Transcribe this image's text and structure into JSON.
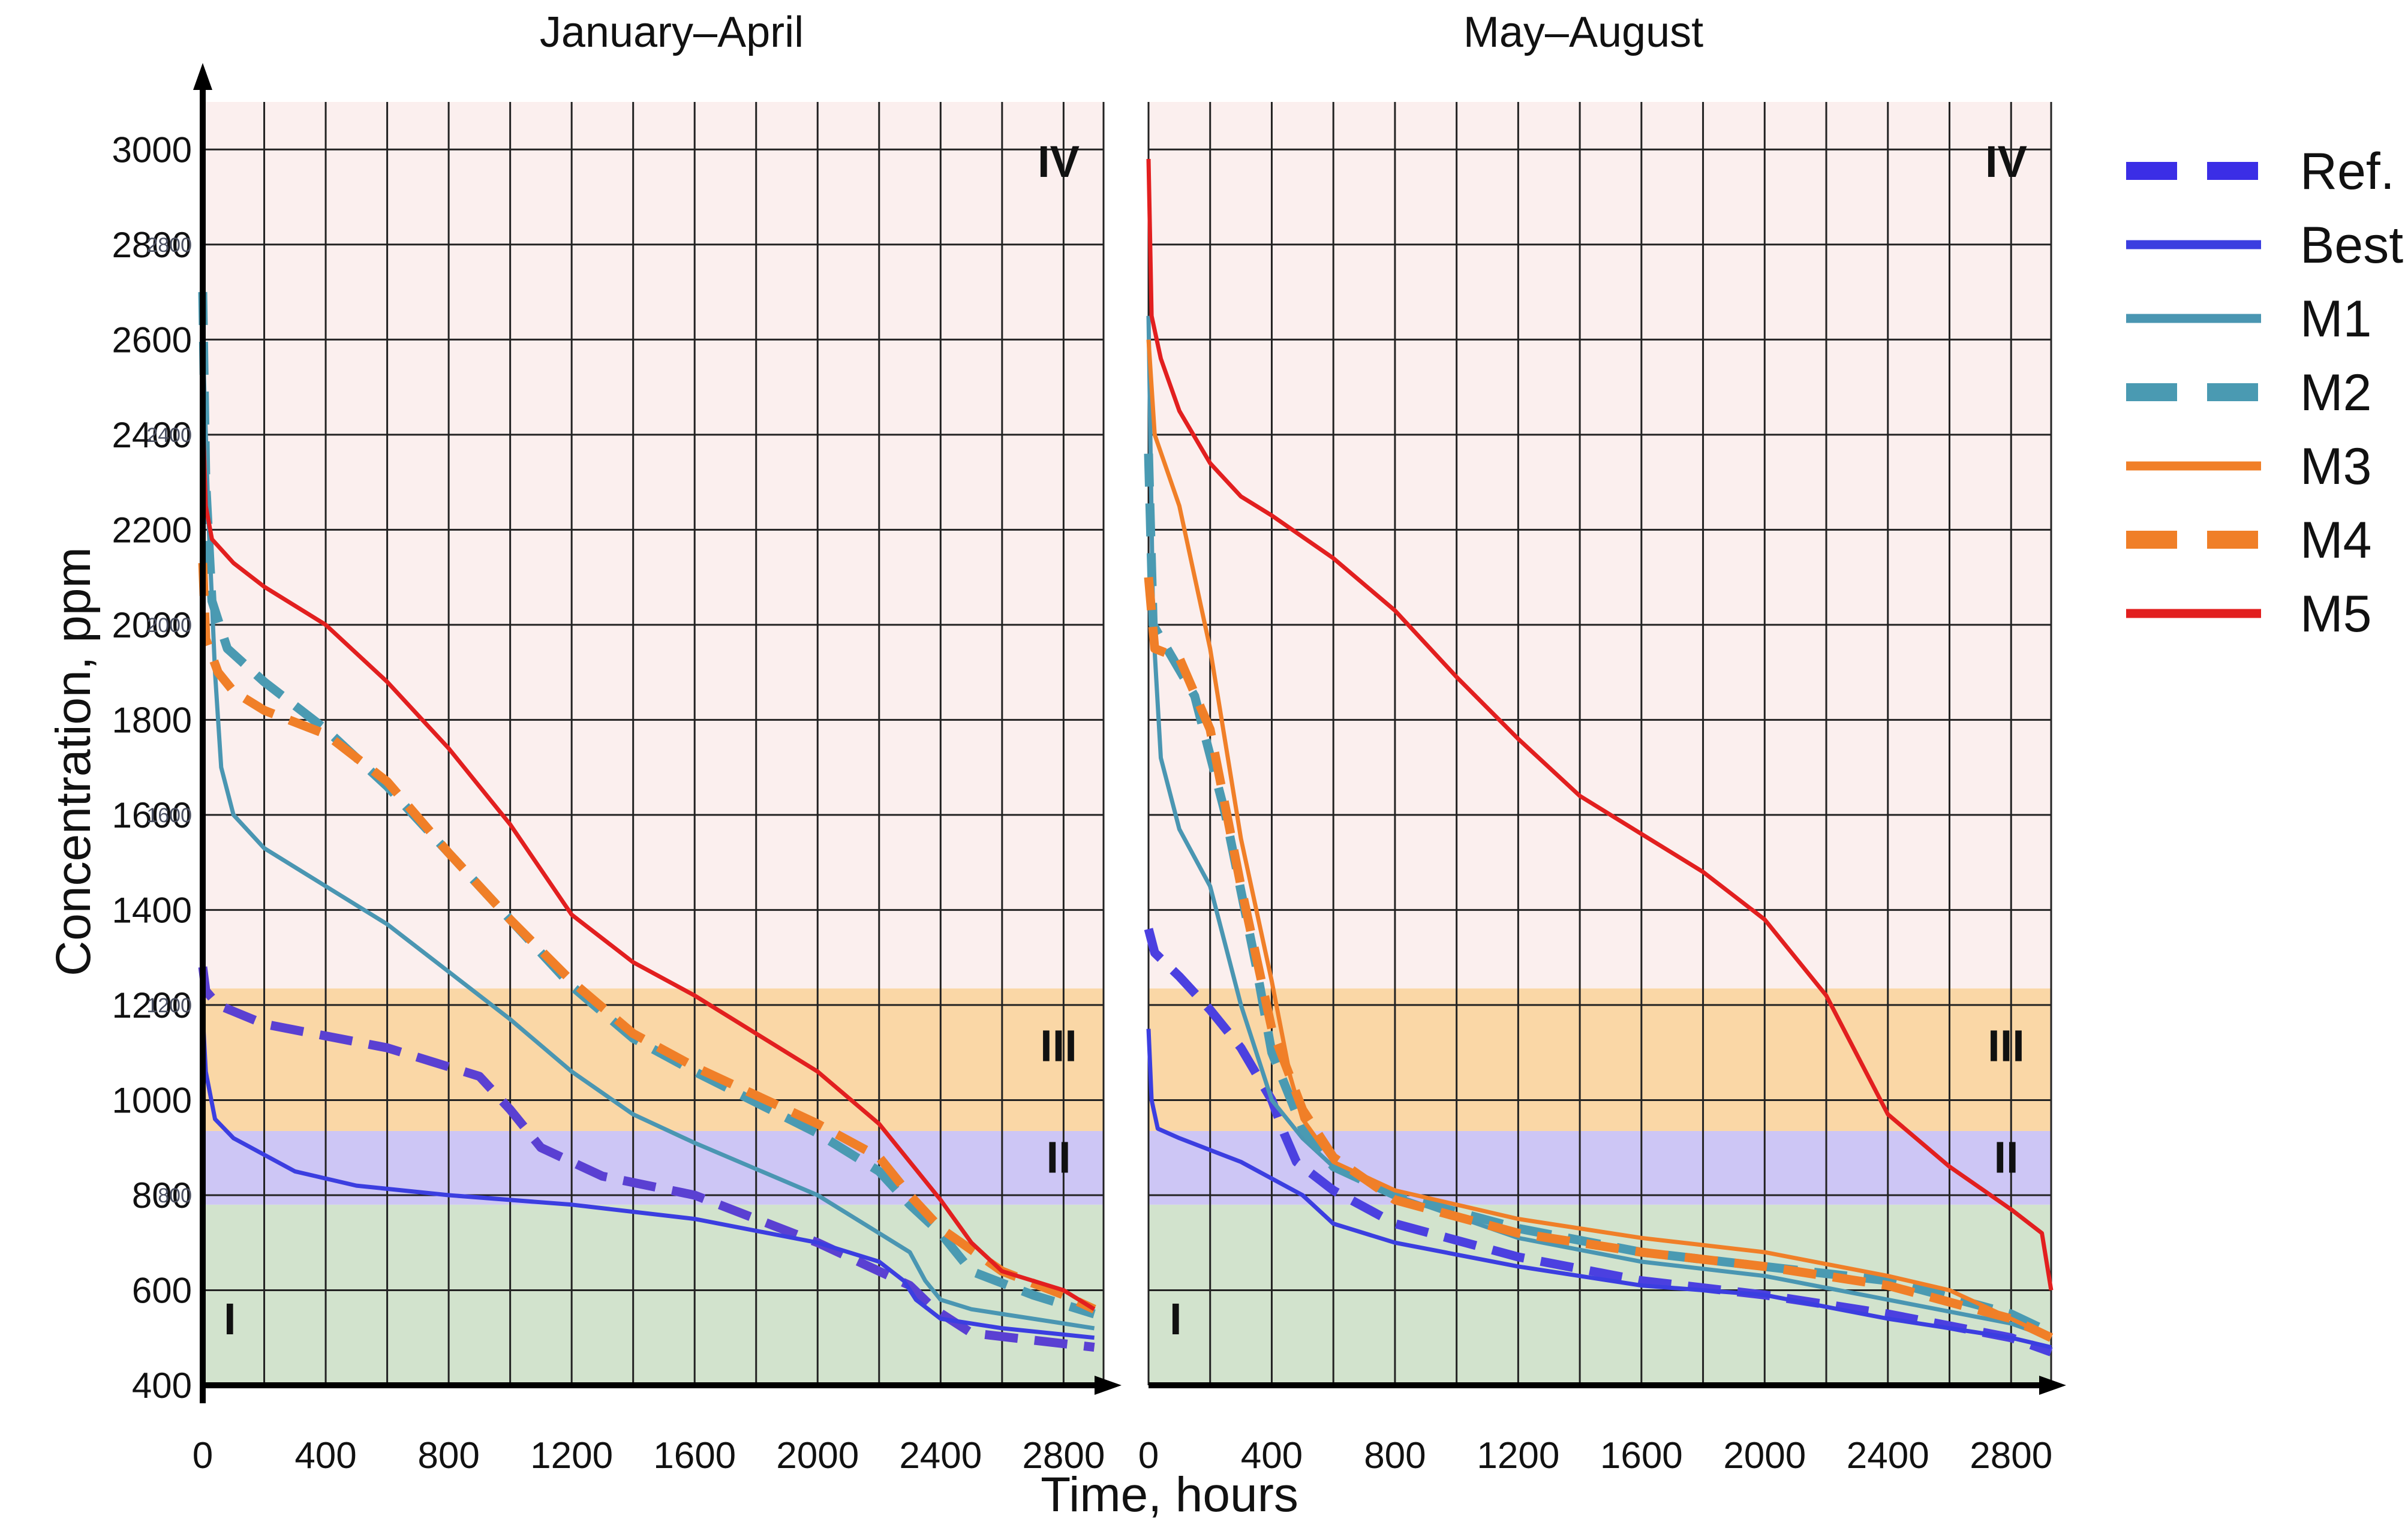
{
  "chart_data": {
    "type": "line",
    "xlabel": "Time, hours",
    "ylabel": "Concentration, ppm",
    "xlim": [
      0,
      2930
    ],
    "ylim": [
      400,
      3100
    ],
    "x_ticks": [
      0,
      400,
      800,
      1200,
      1600,
      2000,
      2400,
      2800
    ],
    "y_ticks": [
      400,
      600,
      800,
      1000,
      1200,
      1400,
      1600,
      1800,
      2000,
      2200,
      2400,
      2600,
      2800,
      3000
    ],
    "y_ticks_small": [
      800,
      1200,
      1600,
      2000,
      2400,
      2800
    ],
    "zones": [
      {
        "label": "I",
        "ymin": 400,
        "ymax": 780,
        "color": "#d2e3cd"
      },
      {
        "label": "II",
        "ymin": 780,
        "ymax": 935,
        "color": "#cdc6f5"
      },
      {
        "label": "III",
        "ymin": 935,
        "ymax": 1235,
        "color": "#fad7a6"
      },
      {
        "label": "IV",
        "ymin": 1235,
        "ymax": 3100,
        "color": "#fbefee"
      }
    ],
    "legend": [
      {
        "name": "Ref.",
        "color": "#3b2ee6",
        "dashed": true
      },
      {
        "name": "Best",
        "color": "#3b3ee0",
        "dashed": false
      },
      {
        "name": "M1",
        "color": "#4a96b2",
        "dashed": false
      },
      {
        "name": "M2",
        "color": "#4a9ab2",
        "dashed": true
      },
      {
        "name": "M3",
        "color": "#f07f28",
        "dashed": false
      },
      {
        "name": "M4",
        "color": "#f07f28",
        "dashed": true
      },
      {
        "name": "M5",
        "color": "#e21f1f",
        "dashed": false
      }
    ],
    "panels": [
      {
        "title": "January–April",
        "series": [
          {
            "name": "Ref.",
            "color": "#5a40d2",
            "dashed": true,
            "x": [
              0,
              10,
              50,
              200,
              600,
              900,
              1000,
              1050,
              1100,
              1300,
              1600,
              2000,
              2300,
              2380,
              2500,
              2700,
              2900
            ],
            "y": [
              1280,
              1230,
              1200,
              1160,
              1110,
              1050,
              980,
              940,
              900,
              840,
              800,
              700,
              610,
              560,
              510,
              495,
              480
            ]
          },
          {
            "name": "Best",
            "color": "#3b3ee0",
            "dashed": false,
            "x": [
              0,
              10,
              40,
              100,
              300,
              500,
              800,
              1200,
              1600,
              2000,
              2200,
              2280,
              2320,
              2400,
              2600,
              2900
            ],
            "y": [
              1180,
              1060,
              960,
              920,
              850,
              820,
              800,
              780,
              750,
              700,
              660,
              620,
              580,
              540,
              520,
              500
            ]
          },
          {
            "name": "M1",
            "color": "#4a96b2",
            "dashed": false,
            "x": [
              0,
              20,
              40,
              60,
              100,
              200,
              400,
              600,
              800,
              1000,
              1200,
              1400,
              1600,
              2000,
              2200,
              2300,
              2350,
              2400,
              2500,
              2700,
              2900
            ],
            "y": [
              2600,
              2200,
              1900,
              1700,
              1600,
              1530,
              1450,
              1370,
              1270,
              1170,
              1060,
              970,
              910,
              800,
              720,
              680,
              620,
              580,
              560,
              540,
              520
            ]
          },
          {
            "name": "M2",
            "color": "#4a9ab2",
            "dashed": true,
            "x": [
              0,
              10,
              30,
              80,
              200,
              400,
              600,
              800,
              1000,
              1200,
              1400,
              1600,
              2000,
              2200,
              2300,
              2400,
              2500,
              2700,
              2900
            ],
            "y": [
              2700,
              2300,
              2050,
              1950,
              1880,
              1780,
              1660,
              1520,
              1380,
              1240,
              1130,
              1060,
              930,
              850,
              780,
              720,
              640,
              590,
              550
            ]
          },
          {
            "name": "M4",
            "color": "#f07f28",
            "dashed": true,
            "x": [
              0,
              10,
              50,
              100,
              200,
              400,
              600,
              800,
              1000,
              1200,
              1400,
              1600,
              2000,
              2200,
              2300,
              2400,
              2600,
              2800,
              2900
            ],
            "y": [
              2130,
              1970,
              1900,
              1860,
              1820,
              1770,
              1670,
              1520,
              1380,
              1250,
              1140,
              1070,
              950,
              880,
              800,
              730,
              640,
              590,
              560
            ]
          },
          {
            "name": "M5",
            "color": "#e21f1f",
            "dashed": false,
            "x": [
              0,
              10,
              30,
              100,
              200,
              400,
              600,
              800,
              1000,
              1200,
              1400,
              1600,
              1800,
              2000,
              2200,
              2400,
              2500,
              2600,
              2800,
              2900
            ],
            "y": [
              2450,
              2250,
              2180,
              2130,
              2080,
              2000,
              1880,
              1740,
              1580,
              1390,
              1290,
              1220,
              1140,
              1060,
              950,
              790,
              700,
              640,
              600,
              560
            ]
          }
        ],
        "zone_label_positions": {
          "IV": "top-right",
          "III": "right",
          "II": "right",
          "I": "bottom-left"
        }
      },
      {
        "title": "May–August",
        "series": [
          {
            "name": "Ref.",
            "color": "#4b40e0",
            "dashed": true,
            "x": [
              0,
              20,
              100,
              200,
              300,
              400,
              440,
              480,
              600,
              800,
              1200,
              1600,
              2000,
              2400,
              2800,
              2930
            ],
            "y": [
              1360,
              1310,
              1260,
              1190,
              1110,
              1000,
              930,
              870,
              810,
              740,
              670,
              620,
              590,
              550,
              500,
              470
            ]
          },
          {
            "name": "Best",
            "color": "#3b3ee0",
            "dashed": false,
            "x": [
              0,
              10,
              30,
              100,
              300,
              500,
              600,
              800,
              1200,
              1600,
              2000,
              2400,
              2800,
              2930
            ],
            "y": [
              1150,
              1000,
              940,
              920,
              870,
              800,
              740,
              700,
              650,
              610,
              590,
              540,
              500,
              480
            ]
          },
          {
            "name": "M1",
            "color": "#4a96b2",
            "dashed": false,
            "x": [
              0,
              15,
              40,
              100,
              200,
              300,
              400,
              500,
              600,
              800,
              1200,
              1600,
              2000,
              2400,
              2800,
              2930
            ],
            "y": [
              2650,
              2000,
              1720,
              1570,
              1450,
              1200,
              1000,
              920,
              860,
              800,
              710,
              660,
              630,
              580,
              530,
              500
            ]
          },
          {
            "name": "M2",
            "color": "#4a9ab2",
            "dashed": true,
            "x": [
              0,
              15,
              60,
              150,
              250,
              350,
              400,
              500,
              600,
              800,
              1200,
              1600,
              2000,
              2400,
              2800,
              2930
            ],
            "y": [
              2360,
              2000,
              1950,
              1850,
              1600,
              1280,
              1100,
              940,
              860,
              800,
              730,
              680,
              650,
              620,
              550,
              510
            ]
          },
          {
            "name": "M3",
            "color": "#f07f28",
            "dashed": false,
            "x": [
              0,
              20,
              100,
              200,
              300,
              400,
              460,
              500,
              600,
              800,
              1200,
              1600,
              2000,
              2400,
              2600,
              2800,
              2930
            ],
            "y": [
              2600,
              2400,
              2250,
              1950,
              1550,
              1250,
              1050,
              960,
              870,
              810,
              750,
              710,
              680,
              630,
              600,
              540,
              500
            ]
          },
          {
            "name": "M4",
            "color": "#f07f28",
            "dashed": true,
            "x": [
              0,
              20,
              100,
              200,
              300,
              400,
              500,
              600,
              800,
              1200,
              1600,
              2000,
              2400,
              2800,
              2930
            ],
            "y": [
              2100,
              1950,
              1930,
              1780,
              1450,
              1150,
              980,
              880,
              790,
              720,
              680,
              650,
              610,
              540,
              500
            ]
          },
          {
            "name": "M5",
            "color": "#e21f1f",
            "dashed": false,
            "x": [
              0,
              10,
              40,
              100,
              200,
              300,
              400,
              600,
              800,
              1000,
              1200,
              1400,
              1600,
              1800,
              2000,
              2200,
              2400,
              2600,
              2800,
              2900,
              2930
            ],
            "y": [
              2980,
              2650,
              2560,
              2450,
              2340,
              2270,
              2230,
              2140,
              2030,
              1890,
              1760,
              1640,
              1560,
              1480,
              1380,
              1220,
              970,
              860,
              770,
              720,
              600
            ]
          }
        ],
        "zone_label_positions": {
          "IV": "top-right",
          "III": "right",
          "II": "right",
          "I": "bottom-left"
        }
      }
    ]
  }
}
